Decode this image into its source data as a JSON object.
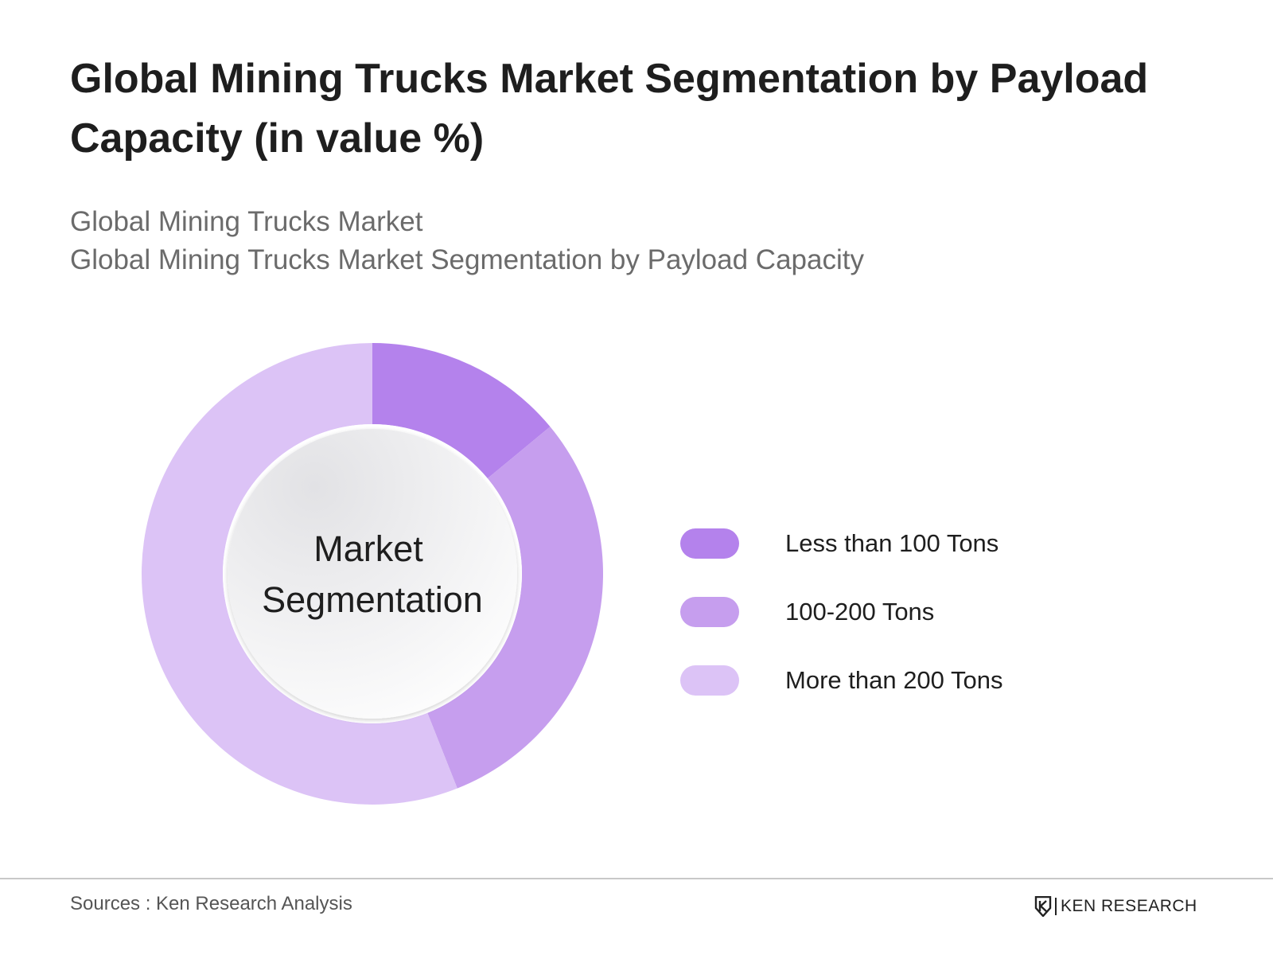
{
  "title": "Global Mining Trucks Market Segmentation by Payload Capacity (in value %)",
  "subtitle": {
    "line1": "Global Mining Trucks Market",
    "line2": "Global Mining Trucks Market Segmentation by Payload Capacity"
  },
  "chart_data": {
    "type": "pie",
    "variant": "donut",
    "title": "Global Mining Trucks Market Segmentation by Payload Capacity (in value %)",
    "center_label": [
      "Market",
      "Segmentation"
    ],
    "categories": [
      "Less than 100 Tons",
      "100-200 Tons",
      "More than 200 Tons"
    ],
    "values": [
      14,
      30,
      56
    ],
    "colors": [
      "#b482ec",
      "#c69eee",
      "#dcc3f6"
    ],
    "legend_position": "right"
  },
  "footer": {
    "source": "Sources : Ken Research Analysis",
    "brand": "KEN RESEARCH"
  }
}
